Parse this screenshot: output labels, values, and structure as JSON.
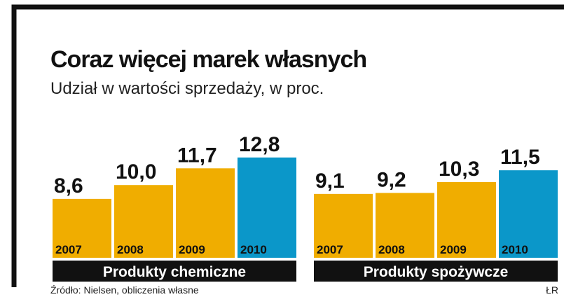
{
  "title": "Coraz więcej marek własnych",
  "subtitle": "Udział w wartości sprzedaży, w proc.",
  "source": "Źródło: Nielsen, obliczenia własne",
  "credit": "ŁR",
  "colors": {
    "bar": "#f0ad00",
    "highlight": "#0b97c9",
    "group_band": "#111111"
  },
  "chart_data": [
    {
      "type": "bar",
      "group_label": "Produkty chemiczne",
      "categories": [
        "2007",
        "2008",
        "2009",
        "2010"
      ],
      "values": [
        8.6,
        10.0,
        11.7,
        12.8
      ],
      "value_labels": [
        "8,6",
        "10,0",
        "11,7",
        "12,8"
      ],
      "highlight_index": 3
    },
    {
      "type": "bar",
      "group_label": "Produkty spożywcze",
      "categories": [
        "2007",
        "2008",
        "2009",
        "2010"
      ],
      "values": [
        9.1,
        9.2,
        10.3,
        11.5
      ],
      "value_labels": [
        "9,1",
        "9,2",
        "10,3",
        "11,5"
      ],
      "highlight_index": 3
    }
  ]
}
